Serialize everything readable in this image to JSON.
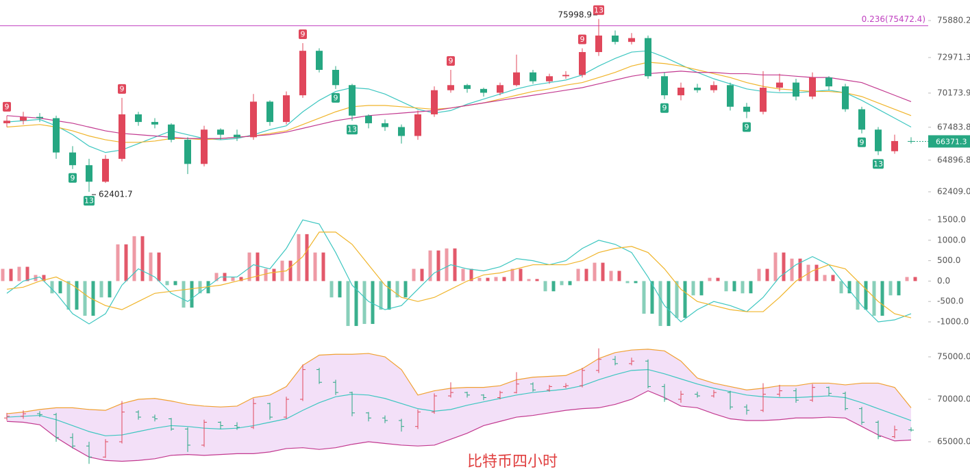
{
  "chart_data": [
    {
      "type": "candlestick",
      "open": [
        67800,
        68000,
        68300,
        68200,
        65500,
        64500,
        63200,
        65000,
        68500,
        67900,
        67700,
        66500,
        64600,
        67300,
        66900,
        66700,
        69500,
        67900,
        70000,
        73500,
        72000,
        70800,
        68400,
        67800,
        67500,
        66800,
        68500,
        70400,
        70800,
        70500,
        70200,
        70800,
        71800,
        71100,
        71500,
        71600,
        73400,
        74700,
        74200,
        74500,
        71500,
        70000,
        70600,
        70400,
        70800,
        69100,
        68700,
        70600,
        71000,
        69900,
        71400,
        70700,
        68900,
        67300,
        65600,
        66400
      ],
      "high": [
        68400,
        68700,
        68600,
        68400,
        66000,
        65000,
        65300,
        69800,
        68700,
        68200,
        67800,
        66700,
        67600,
        67400,
        67300,
        70100,
        69600,
        70300,
        74100,
        73700,
        72300,
        70900,
        68500,
        68100,
        67700,
        68800,
        70700,
        72000,
        70900,
        70600,
        71000,
        73200,
        72000,
        71700,
        71900,
        73700,
        75998.9,
        75100,
        74900,
        74700,
        71800,
        71000,
        70900,
        71100,
        71000,
        69400,
        71900,
        71700,
        71300,
        71800,
        71500,
        70900,
        69100,
        67500,
        66900,
        66700
      ],
      "low": [
        67500,
        67700,
        67900,
        65000,
        64200,
        62401.7,
        63100,
        64800,
        67600,
        67400,
        66300,
        63800,
        64400,
        66500,
        66400,
        66500,
        67600,
        67700,
        69800,
        71800,
        70500,
        68000,
        67400,
        67200,
        66200,
        66500,
        68300,
        70200,
        70200,
        69900,
        70000,
        70700,
        70900,
        70900,
        71300,
        71400,
        73100,
        74000,
        74000,
        71300,
        69700,
        69600,
        70200,
        70200,
        68800,
        68200,
        68500,
        70300,
        69600,
        69700,
        70400,
        68700,
        67000,
        65300,
        65400,
        66200
      ],
      "close": [
        68000,
        68300,
        68200,
        65500,
        64500,
        63200,
        65000,
        68500,
        67900,
        67700,
        66500,
        64600,
        67300,
        66900,
        66700,
        69500,
        67900,
        70000,
        73500,
        72000,
        70800,
        68400,
        67800,
        67500,
        66800,
        68500,
        70400,
        70800,
        70500,
        70200,
        70800,
        71800,
        71100,
        71500,
        71600,
        73400,
        74700,
        74200,
        74500,
        71500,
        70000,
        70600,
        70400,
        70800,
        69100,
        68700,
        70600,
        71000,
        69900,
        71400,
        70700,
        68900,
        67300,
        65600,
        66400,
        66371.3
      ],
      "up_color": "#e0475b",
      "down_color": "#26a782",
      "lines": [
        {
          "color": "#3cc6c0",
          "values": [
            67900,
            68000,
            68100,
            67600,
            66900,
            66000,
            65500,
            65700,
            66200,
            66700,
            67200,
            66900,
            66600,
            66500,
            66600,
            66900,
            67300,
            67600,
            68700,
            69600,
            70300,
            70600,
            70500,
            70100,
            69500,
            68900,
            68600,
            68800,
            69300,
            69700,
            70100,
            70500,
            70800,
            71000,
            71200,
            71600,
            72300,
            72900,
            73400,
            73500,
            73000,
            72400,
            71800,
            71300,
            70900,
            70500,
            70300,
            70200,
            70200,
            70300,
            70400,
            70200,
            69600,
            68900,
            68200,
            67500
          ]
        },
        {
          "color": "#f0b429",
          "values": [
            67500,
            67600,
            67700,
            67500,
            67200,
            66800,
            66500,
            66300,
            66300,
            66400,
            66600,
            66600,
            66500,
            66600,
            66700,
            66800,
            67000,
            67200,
            67700,
            68200,
            68700,
            69100,
            69200,
            69200,
            69100,
            69000,
            68900,
            69000,
            69200,
            69400,
            69700,
            70000,
            70300,
            70500,
            70800,
            71000,
            71400,
            71800,
            72300,
            72600,
            72500,
            72300,
            72000,
            71700,
            71400,
            71000,
            70700,
            70500,
            70400,
            70300,
            70300,
            70200,
            69900,
            69400,
            68900,
            68400
          ]
        },
        {
          "color": "#c2388f",
          "values": [
            68400,
            68300,
            68200,
            68000,
            67800,
            67500,
            67200,
            67000,
            66900,
            66800,
            66700,
            66600,
            66600,
            66600,
            66700,
            66800,
            66900,
            67100,
            67400,
            67700,
            68000,
            68200,
            68400,
            68500,
            68600,
            68700,
            68800,
            69000,
            69200,
            69400,
            69600,
            69800,
            70000,
            70200,
            70400,
            70600,
            70900,
            71200,
            71500,
            71700,
            71800,
            71900,
            71800,
            71800,
            71700,
            71700,
            71600,
            71600,
            71500,
            71400,
            71400,
            71200,
            71000,
            70500,
            70000,
            69500
          ]
        }
      ],
      "fib_line": {
        "label": "0.236(75472.4)",
        "value": 75472.4,
        "color": "#c040c0"
      },
      "td_marks": [
        {
          "label": "9",
          "at": 0,
          "side": "above"
        },
        {
          "label": "9",
          "at": 7,
          "side": "above"
        },
        {
          "label": "9",
          "at": 18,
          "side": "above"
        },
        {
          "label": "9",
          "at": 27,
          "side": "above"
        },
        {
          "label": "9",
          "at": 35,
          "side": "above"
        },
        {
          "label": "13",
          "at": 36,
          "side": "above"
        },
        {
          "label": "9",
          "at": 4,
          "side": "below"
        },
        {
          "label": "13",
          "at": 5,
          "side": "below"
        },
        {
          "label": "9",
          "at": 20,
          "side": "below"
        },
        {
          "label": "13",
          "at": 21,
          "side": "below"
        },
        {
          "label": "9",
          "at": 40,
          "side": "below"
        },
        {
          "label": "9",
          "at": 45,
          "side": "below"
        },
        {
          "label": "9",
          "at": 52,
          "side": "below"
        },
        {
          "label": "13",
          "at": 53,
          "side": "below"
        }
      ],
      "ylim": [
        61331,
        77497
      ],
      "yticks": [
        75880.2,
        72971.3,
        70173.9,
        67483.8,
        64896.8,
        {
          "value": 62409.0,
          "label": "62409.0"
        }
      ]
    },
    {
      "type": "macd",
      "histogram": [
        300,
        350,
        150,
        -300,
        -700,
        -850,
        -400,
        900,
        1100,
        700,
        -100,
        -650,
        -300,
        200,
        100,
        700,
        300,
        500,
        1150,
        700,
        -400,
        -1100,
        -1050,
        -700,
        -400,
        300,
        750,
        800,
        300,
        80,
        100,
        300,
        50,
        -250,
        -100,
        300,
        450,
        250,
        -50,
        -800,
        -1100,
        -900,
        -350,
        80,
        -250,
        -300,
        300,
        700,
        550,
        400,
        150,
        -300,
        -700,
        -850,
        -350,
        100
      ],
      "up_color": "#e0475b",
      "down_color": "#26a782",
      "lines": [
        {
          "color": "#3cc6c0",
          "values": [
            -300,
            0,
            100,
            -300,
            -800,
            -1050,
            -800,
            -100,
            300,
            100,
            -300,
            -500,
            -200,
            100,
            100,
            400,
            300,
            800,
            1500,
            1400,
            700,
            -100,
            -500,
            -700,
            -600,
            -200,
            200,
            400,
            300,
            250,
            350,
            550,
            500,
            400,
            500,
            800,
            1000,
            900,
            700,
            100,
            -600,
            -1000,
            -700,
            -500,
            -600,
            -750,
            -400,
            100,
            400,
            600,
            400,
            -100,
            -600,
            -1000,
            -950,
            -800
          ]
        },
        {
          "color": "#f0b429",
          "values": [
            -200,
            -150,
            0,
            100,
            -100,
            -400,
            -600,
            -700,
            -500,
            -300,
            -250,
            -200,
            -150,
            -100,
            0,
            100,
            200,
            250,
            600,
            1200,
            1200,
            900,
            400,
            -100,
            -400,
            -500,
            -400,
            -200,
            0,
            150,
            200,
            300,
            400,
            400,
            400,
            500,
            700,
            800,
            850,
            700,
            300,
            -200,
            -500,
            -600,
            -700,
            -750,
            -750,
            -400,
            0,
            250,
            400,
            300,
            -100,
            -500,
            -800,
            -900
          ]
        }
      ],
      "ylim": [
        -1336,
        1685
      ],
      "yticks": [
        {
          "value": 1500,
          "label": "1500.0"
        },
        {
          "value": 1000,
          "label": "1000.0"
        },
        {
          "value": 500,
          "label": "500.0"
        },
        {
          "value": 0,
          "label": "0.0"
        },
        {
          "value": -500,
          "label": "-500.0"
        },
        {
          "value": -1000,
          "label": "-1000.0"
        }
      ]
    },
    {
      "type": "bollinger",
      "title": "比特币四小时",
      "upper": [
        68300,
        68500,
        68800,
        69000,
        69000,
        68800,
        68700,
        69500,
        70000,
        70100,
        69800,
        69400,
        69200,
        69100,
        69200,
        70200,
        70500,
        71500,
        74000,
        75200,
        75300,
        75300,
        75400,
        75000,
        73500,
        70500,
        71000,
        71300,
        71400,
        71400,
        71600,
        72300,
        72600,
        72700,
        72800,
        73600,
        74800,
        75500,
        75800,
        75900,
        75700,
        74500,
        72500,
        71900,
        71500,
        71100,
        71300,
        71600,
        71600,
        71900,
        71900,
        71700,
        71900,
        71900,
        71400,
        69000
      ],
      "middle": [
        67900,
        68000,
        68100,
        67600,
        66900,
        66200,
        65700,
        65800,
        66200,
        66600,
        66900,
        66800,
        66600,
        66500,
        66600,
        66900,
        67300,
        67700,
        68700,
        69600,
        70300,
        70600,
        70500,
        70100,
        69500,
        68900,
        68600,
        68800,
        69300,
        69700,
        70100,
        70500,
        70800,
        71000,
        71200,
        71600,
        72300,
        72900,
        73400,
        73500,
        73000,
        72400,
        71800,
        71300,
        70900,
        70500,
        70300,
        70200,
        70200,
        70300,
        70400,
        70200,
        69600,
        68900,
        68200,
        67500
      ],
      "lower": [
        67400,
        67300,
        67000,
        65500,
        64300,
        63200,
        62800,
        62700,
        62800,
        63000,
        63400,
        63500,
        63400,
        63500,
        63600,
        63600,
        63800,
        64200,
        64300,
        64100,
        64300,
        64700,
        65000,
        64800,
        64600,
        64500,
        64600,
        65300,
        66000,
        66900,
        67400,
        67900,
        68100,
        68400,
        68700,
        68900,
        69000,
        69400,
        70000,
        71000,
        70200,
        69200,
        69000,
        68300,
        67700,
        67500,
        67500,
        67600,
        67800,
        67800,
        67900,
        67800,
        66800,
        65800,
        65100,
        65200
      ],
      "upper_color": "#f0a030",
      "middle_color": "#3cc6c0",
      "lower_color": "#c2388f",
      "band_color": "#f3e0f8",
      "ylim": [
        61371,
        76694
      ],
      "yticks": [
        {
          "value": 75000,
          "label": "75000.0"
        },
        {
          "value": 70000,
          "label": "70000.0"
        },
        {
          "value": 65000,
          "label": "65000.0"
        }
      ]
    }
  ]
}
